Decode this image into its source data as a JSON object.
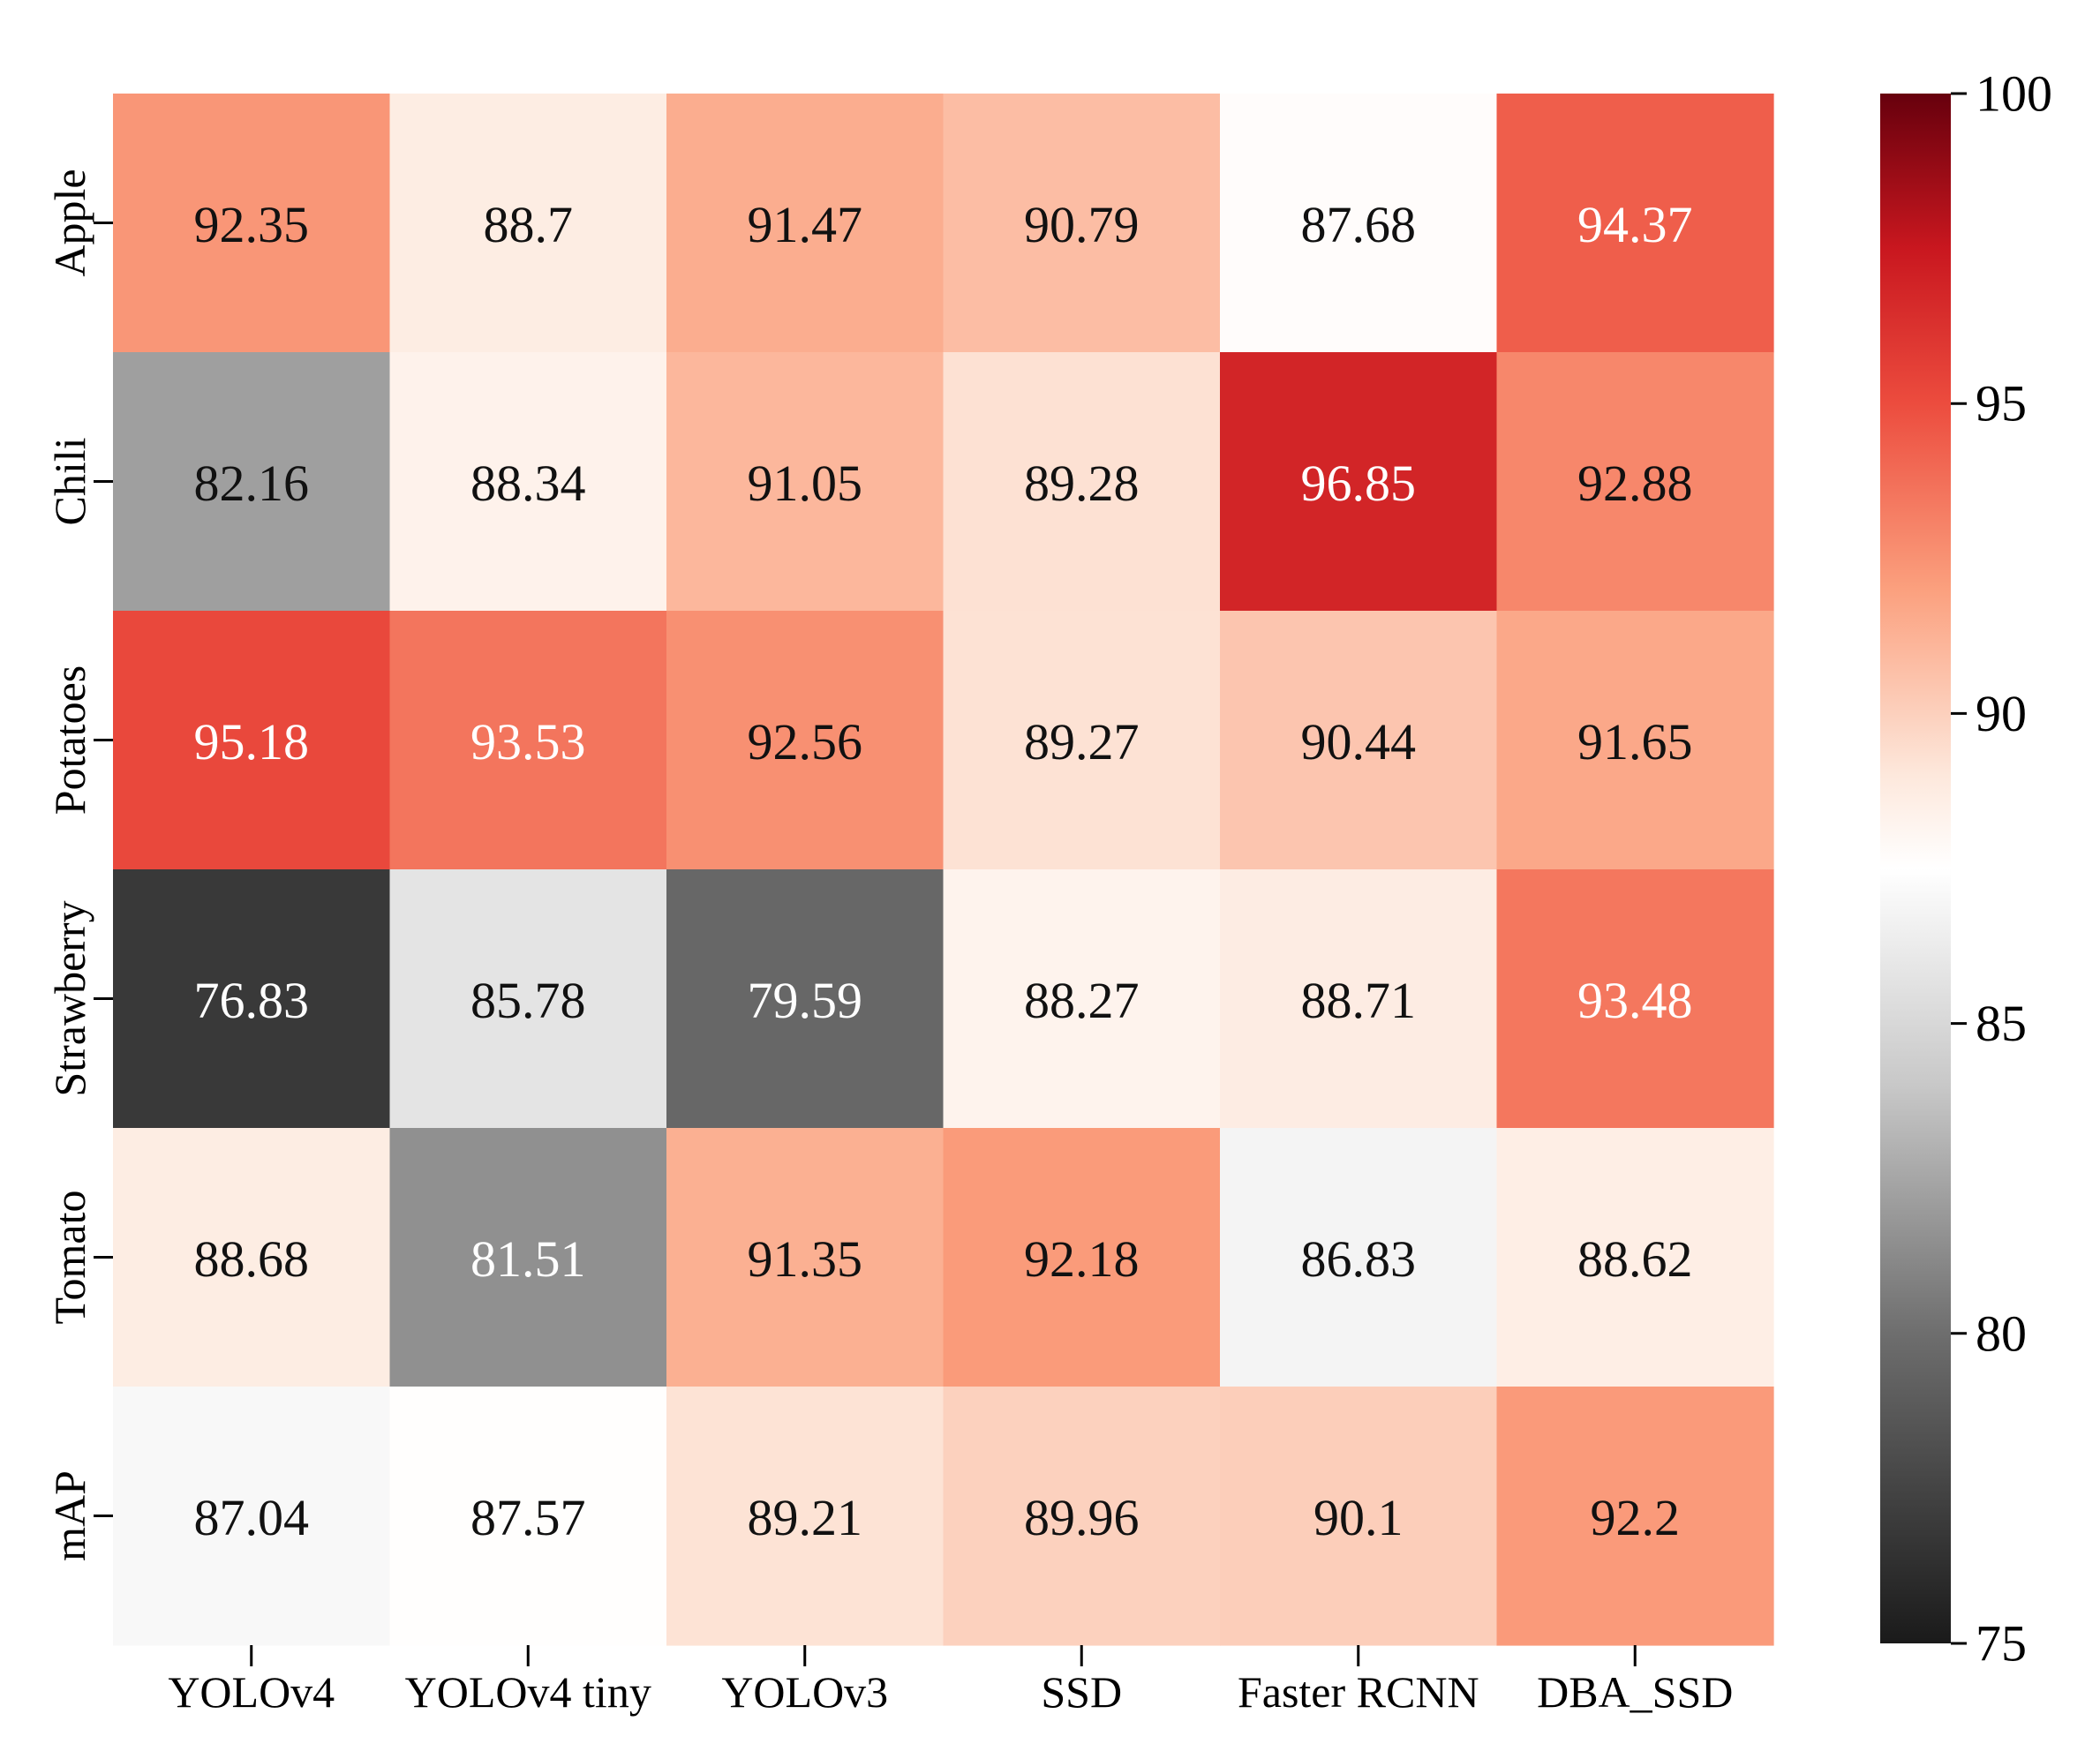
{
  "chart_data": {
    "type": "heatmap",
    "title": "",
    "xlabel": "",
    "ylabel": "",
    "x_categories": [
      "YOLOv4",
      "YOLOv4 tiny",
      "YOLOv3",
      "SSD",
      "Faster RCNN",
      "DBA_SSD"
    ],
    "y_categories": [
      "Apple",
      "Chili",
      "Potatoes",
      "Strawberry",
      "Tomato",
      "mAP"
    ],
    "values": [
      [
        92.35,
        88.7,
        91.47,
        90.79,
        87.68,
        94.37
      ],
      [
        82.16,
        88.34,
        91.05,
        89.28,
        96.85,
        92.88
      ],
      [
        95.18,
        93.53,
        92.56,
        89.27,
        90.44,
        91.65
      ],
      [
        76.83,
        85.78,
        79.59,
        88.27,
        88.71,
        93.48
      ],
      [
        88.68,
        81.51,
        91.35,
        92.18,
        86.83,
        88.62
      ],
      [
        87.04,
        87.57,
        89.21,
        89.96,
        90.1,
        92.2
      ]
    ],
    "value_labels": [
      [
        "92.35",
        "88.7",
        "91.47",
        "90.79",
        "87.68",
        "94.37"
      ],
      [
        "82.16",
        "88.34",
        "91.05",
        "89.28",
        "96.85",
        "92.88"
      ],
      [
        "95.18",
        "93.53",
        "92.56",
        "89.27",
        "90.44",
        "91.65"
      ],
      [
        "76.83",
        "85.78",
        "79.59",
        "88.27",
        "88.71",
        "93.48"
      ],
      [
        "88.68",
        "81.51",
        "91.35",
        "92.18",
        "86.83",
        "88.62"
      ],
      [
        "87.04",
        "87.57",
        "89.21",
        "89.96",
        "90.1",
        "92.2"
      ]
    ],
    "colorbar": {
      "vmin": 75,
      "vmax": 100,
      "ticks": [
        75,
        80,
        85,
        90,
        95,
        100
      ],
      "tick_labels": [
        "75",
        "80",
        "85",
        "90",
        "95",
        "100"
      ],
      "stops": [
        {
          "value": 75,
          "color": "#1a1a1a"
        },
        {
          "value": 80,
          "color": "#6e6e6e"
        },
        {
          "value": 84,
          "color": "#c8c8c8"
        },
        {
          "value": 87.5,
          "color": "#ffffff"
        },
        {
          "value": 89,
          "color": "#fde8dc"
        },
        {
          "value": 92,
          "color": "#fba07e"
        },
        {
          "value": 95,
          "color": "#ec4c3e"
        },
        {
          "value": 97.5,
          "color": "#c9171f"
        },
        {
          "value": 100,
          "color": "#67000d"
        }
      ]
    }
  }
}
